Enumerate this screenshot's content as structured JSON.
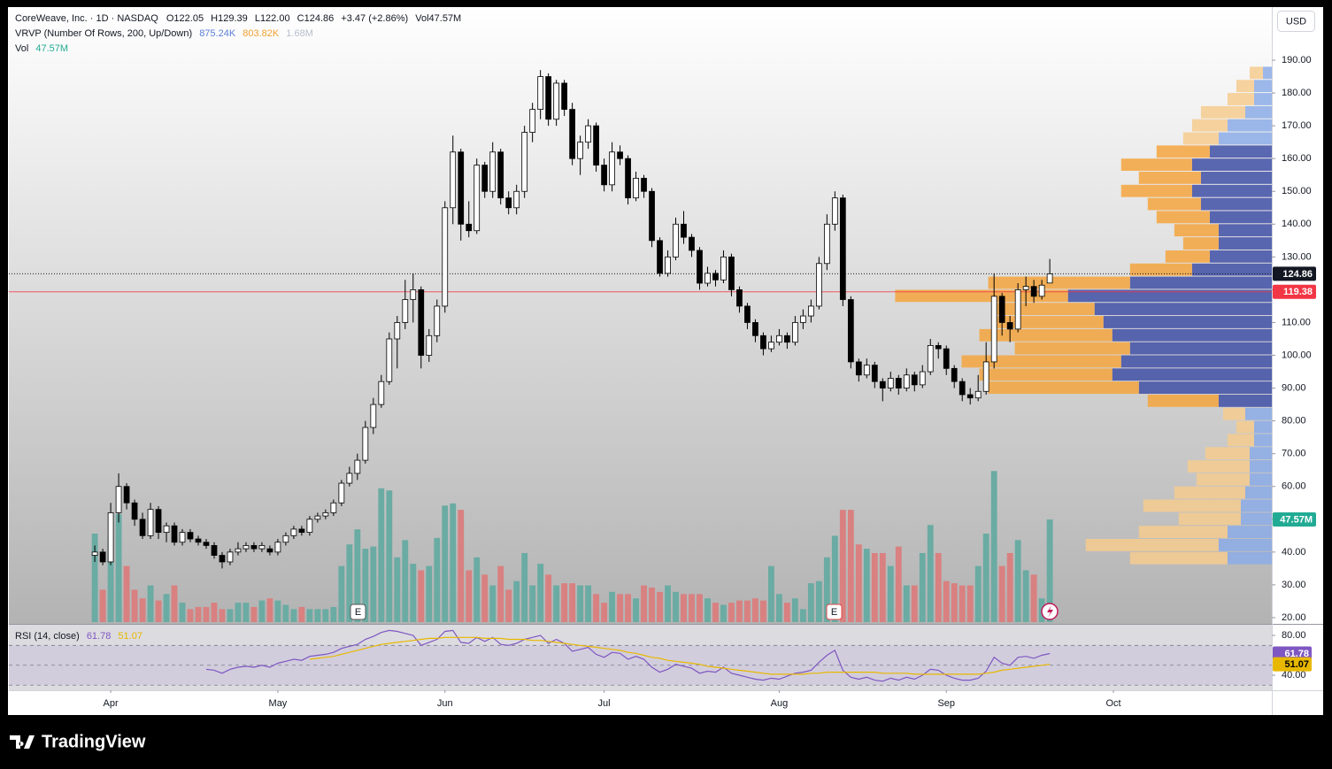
{
  "header": {
    "title": "CoreWeave, Inc. · 1D · NASDAQ",
    "ohlc": [
      {
        "key": "O",
        "value": "122.05"
      },
      {
        "key": "H",
        "value": "129.39"
      },
      {
        "key": "L",
        "value": "122.00"
      },
      {
        "key": "C",
        "value": "124.86"
      }
    ],
    "change": "+3.47 (+2.86%)",
    "vol_key": "Vol",
    "vol_value": "47.57M"
  },
  "vrvp": {
    "title": "VRVP (Number Of Rows, 200, Up/Down)",
    "up": "875.24K",
    "down": "803.82K",
    "total": "1.68M"
  },
  "vol_legend": {
    "title": "Vol",
    "value": "47.57M"
  },
  "currency": "USD",
  "brand": "TradingView",
  "events": [
    "E",
    "E"
  ],
  "chart_data": {
    "type": "candlestick",
    "xlim": [
      -10.8,
      147.9
    ],
    "xticks": [
      {
        "value": 2,
        "label": "Apr"
      },
      {
        "value": 23,
        "label": "May"
      },
      {
        "value": 44,
        "label": "Jun"
      },
      {
        "value": 64,
        "label": "Jul"
      },
      {
        "value": 86,
        "label": "Aug"
      },
      {
        "value": 107,
        "label": "Sep"
      },
      {
        "value": 128,
        "label": "Oct"
      }
    ],
    "ylim": [
      18.1,
      206.2
    ],
    "yticks": [
      {
        "value": 20,
        "label": "20.00"
      },
      {
        "value": 30,
        "label": "30.00"
      },
      {
        "value": 40,
        "label": "40.00"
      },
      {
        "value": 50,
        "label": "50.00"
      },
      {
        "value": 60,
        "label": "60.00"
      },
      {
        "value": 70,
        "label": "70.00"
      },
      {
        "value": 80,
        "label": "80.00"
      },
      {
        "value": 90,
        "label": "90.00"
      },
      {
        "value": 100,
        "label": "100.00"
      },
      {
        "value": 110,
        "label": "110.00"
      },
      {
        "value": 120,
        "label": "120.00"
      },
      {
        "value": 130,
        "label": "130.00"
      },
      {
        "value": 140,
        "label": "140.00"
      },
      {
        "value": 150,
        "label": "150.00"
      },
      {
        "value": 160,
        "label": "160.00"
      },
      {
        "value": 170,
        "label": "170.00"
      },
      {
        "value": 180,
        "label": "180.00"
      },
      {
        "value": 190,
        "label": "190.00"
      }
    ],
    "up_color": "#ffffff",
    "down_color": "#000000",
    "wick_color": "#000000",
    "open": [
      39,
      40,
      37,
      52,
      60,
      55,
      50,
      45,
      53,
      46,
      48,
      43,
      46,
      44,
      43,
      42,
      39,
      37,
      40,
      41,
      42,
      41,
      41,
      40,
      43,
      45,
      47,
      46,
      50,
      51,
      52,
      55,
      61,
      64,
      68,
      78,
      85,
      92,
      105,
      110,
      117,
      120,
      100,
      106,
      115,
      145,
      162,
      140,
      138,
      158,
      150,
      162,
      148,
      145,
      150,
      168,
      175,
      185,
      172,
      183,
      175,
      160,
      165,
      170,
      158,
      152,
      162,
      160,
      148,
      154,
      150,
      135,
      125,
      130,
      140,
      136,
      132,
      122,
      125,
      123,
      130,
      120,
      115,
      110,
      106,
      102,
      104,
      106,
      104,
      110,
      112,
      115,
      128,
      140,
      148,
      117,
      98,
      94,
      97,
      92,
      90,
      93,
      90,
      94,
      91,
      95,
      103,
      102,
      96,
      92,
      88,
      87,
      89,
      98,
      118,
      110,
      108,
      120,
      121,
      118,
      122.05
    ],
    "high": [
      42,
      41,
      55,
      64,
      61,
      56,
      52,
      55,
      54,
      49,
      49,
      47,
      47,
      45,
      44,
      43,
      40,
      41,
      43,
      43,
      43,
      43,
      42,
      44,
      46,
      48,
      48,
      51,
      52,
      53,
      56,
      62,
      66,
      70,
      80,
      87,
      94,
      107,
      112,
      123,
      125,
      121,
      108,
      117,
      147,
      167,
      163,
      147,
      160,
      159,
      165,
      163,
      150,
      152,
      170,
      177,
      187,
      186,
      184,
      184,
      177,
      167,
      172,
      171,
      160,
      165,
      164,
      161,
      156,
      155,
      151,
      136,
      132,
      142,
      144,
      137,
      133,
      127,
      126,
      132,
      131,
      121,
      116,
      111,
      107,
      106,
      108,
      107,
      112,
      114,
      117,
      130,
      143,
      150,
      149,
      118,
      99,
      99,
      98,
      93,
      95,
      94,
      96,
      95,
      97,
      105,
      104,
      103,
      97,
      93,
      90,
      94,
      104,
      125,
      119,
      112,
      122,
      124,
      123,
      123,
      129.39
    ],
    "low": [
      37,
      36,
      36,
      49,
      53,
      48,
      44,
      44,
      44,
      43,
      42,
      42,
      43,
      42,
      41,
      38,
      35,
      36,
      39,
      40,
      40,
      40,
      39,
      39,
      42,
      44,
      45,
      45,
      49,
      50,
      51,
      54,
      60,
      62,
      67,
      76,
      84,
      91,
      96,
      108,
      110,
      96,
      98,
      104,
      113,
      140,
      135,
      136,
      137,
      148,
      148,
      146,
      143,
      143,
      148,
      165,
      172,
      170,
      170,
      173,
      158,
      155,
      163,
      156,
      150,
      150,
      158,
      146,
      147,
      148,
      133,
      124,
      124,
      129,
      134,
      130,
      120,
      121,
      121,
      122,
      118,
      113,
      108,
      104,
      100,
      101,
      103,
      102,
      103,
      108,
      110,
      114,
      126,
      138,
      115,
      96,
      92,
      93,
      90,
      86,
      89,
      88,
      89,
      89,
      90,
      94,
      99,
      94,
      90,
      86,
      85,
      86,
      88,
      96,
      106,
      104,
      107,
      115,
      116,
      117,
      122
    ],
    "close": [
      40,
      37,
      52,
      60,
      55,
      50,
      45,
      53,
      46,
      48,
      43,
      46,
      44,
      43,
      42,
      39,
      37,
      40,
      41,
      42,
      41,
      42,
      40,
      43,
      45,
      47,
      46,
      50,
      51,
      52,
      55,
      61,
      64,
      68,
      78,
      85,
      92,
      105,
      110,
      117,
      120,
      100,
      106,
      115,
      145,
      162,
      140,
      138,
      158,
      150,
      162,
      148,
      145,
      150,
      168,
      175,
      185,
      172,
      183,
      175,
      160,
      165,
      170,
      158,
      152,
      162,
      160,
      148,
      154,
      150,
      135,
      125,
      130,
      140,
      136,
      132,
      122,
      125,
      123,
      130,
      120,
      115,
      110,
      106,
      102,
      104,
      106,
      104,
      110,
      112,
      115,
      128,
      140,
      148,
      117,
      98,
      94,
      97,
      92,
      90,
      93,
      90,
      94,
      91,
      95,
      103,
      102,
      96,
      92,
      88,
      87,
      89,
      98,
      118,
      110,
      108,
      120,
      121,
      118,
      121.39,
      124.86
    ],
    "last_price_color": "#131722",
    "poc": 119.38,
    "poc_color": "#f23645",
    "volume": [
      41,
      15,
      39,
      50,
      26,
      15,
      11,
      17,
      10,
      13,
      17,
      9,
      6,
      7,
      7,
      9,
      6,
      6,
      9,
      9,
      7,
      10,
      11,
      10,
      8,
      6,
      7,
      6,
      6,
      6,
      7,
      26,
      36,
      43,
      34,
      35,
      62,
      61,
      30,
      38,
      27,
      24,
      26,
      39,
      54,
      55,
      52,
      24,
      30,
      22,
      17,
      26,
      15,
      19,
      32,
      17,
      27,
      22,
      17,
      18,
      18,
      17,
      17,
      13,
      9,
      14,
      13,
      13,
      11,
      17,
      16,
      14,
      17,
      14,
      13,
      13,
      13,
      11,
      9,
      8,
      9,
      10,
      10,
      11,
      10,
      26,
      13,
      9,
      11,
      6,
      18,
      19,
      30,
      40,
      52,
      52,
      36,
      34,
      32,
      32,
      26,
      35,
      17,
      17,
      32,
      45,
      32,
      19,
      18,
      17,
      17,
      26,
      41,
      70,
      26,
      32,
      38,
      24,
      22,
      11,
      47.57
    ],
    "volume_last_label": "47.57M",
    "volume_ylim": [
      0,
      285
    ],
    "volume_up_color": "#6aaba3",
    "volume_down_color": "#d98080",
    "volume_tag_color": "#22ab94",
    "profile": {
      "bins": [
        36,
        40,
        44,
        48,
        52,
        56,
        60,
        64,
        68,
        72,
        76,
        80,
        84,
        88,
        92,
        96,
        100,
        104,
        108,
        112,
        116,
        120,
        124,
        128,
        132,
        136,
        140,
        144,
        148,
        152,
        156,
        160,
        164,
        168,
        172,
        176,
        180,
        184,
        188
      ],
      "up": [
        200,
        240,
        200,
        140,
        140,
        120,
        100,
        100,
        100,
        80,
        80,
        120,
        240,
        600,
        720,
        680,
        640,
        720,
        760,
        800,
        920,
        640,
        360,
        280,
        240,
        240,
        280,
        320,
        360,
        320,
        360,
        280,
        240,
        200,
        120,
        80,
        80,
        40
      ],
      "down": [
        440,
        600,
        400,
        280,
        440,
        320,
        240,
        280,
        200,
        120,
        80,
        100,
        320,
        680,
        600,
        720,
        520,
        600,
        480,
        440,
        780,
        640,
        280,
        200,
        160,
        200,
        240,
        240,
        320,
        280,
        320,
        240,
        160,
        160,
        200,
        120,
        80,
        60
      ],
      "xlim": [
        0,
        5700
      ],
      "value_area": [
        84,
        164
      ],
      "up_color": "#3f4fa6",
      "down_color": "#f4a53d",
      "up_color_outside": "#8cabe6",
      "down_color_outside": "#f6cb8e"
    },
    "rsi": {
      "title": "RSI (14, close)",
      "ylim": [
        24.9,
        91.6
      ],
      "yticks": [
        {
          "value": 80,
          "label": "80.00"
        },
        {
          "value": 40,
          "label": "40.00"
        }
      ],
      "bands": [
        70,
        50,
        30
      ],
      "series": [
        {
          "name": "61.78",
          "color": "#7e57c2",
          "values": [
            null,
            null,
            null,
            null,
            null,
            null,
            null,
            null,
            null,
            null,
            null,
            null,
            null,
            null,
            46,
            45,
            42,
            46,
            48,
            49,
            48,
            50,
            48,
            52,
            54,
            56,
            55,
            59,
            60,
            61,
            63,
            67,
            69,
            71,
            76,
            79,
            83,
            85,
            84,
            82,
            80,
            70,
            73,
            76,
            84,
            85,
            73,
            72,
            78,
            74,
            78,
            71,
            70,
            72,
            76,
            78,
            80,
            72,
            76,
            72,
            64,
            66,
            68,
            61,
            58,
            63,
            62,
            56,
            59,
            56,
            48,
            43,
            46,
            51,
            49,
            47,
            42,
            44,
            43,
            48,
            42,
            40,
            38,
            36,
            35,
            37,
            36,
            39,
            42,
            43,
            45,
            53,
            60,
            65,
            45,
            38,
            36,
            38,
            35,
            34,
            37,
            35,
            38,
            36,
            40,
            46,
            45,
            40,
            37,
            35,
            35,
            37,
            44,
            58,
            52,
            50,
            58,
            59,
            57,
            60,
            61.78
          ]
        },
        {
          "name": "51.07",
          "color": "#e8b800",
          "values": [
            null,
            null,
            null,
            null,
            null,
            null,
            null,
            null,
            null,
            null,
            null,
            null,
            null,
            null,
            null,
            null,
            null,
            null,
            null,
            null,
            null,
            null,
            null,
            null,
            null,
            null,
            null,
            56,
            57,
            58,
            59,
            61,
            63,
            65,
            67,
            69,
            71,
            72,
            73,
            74,
            75,
            76,
            77,
            77,
            78,
            78,
            78,
            78,
            78,
            77,
            77,
            77,
            76,
            76,
            76,
            75,
            75,
            74,
            73,
            72,
            71,
            70,
            69,
            68,
            67,
            66,
            65,
            63,
            62,
            60,
            58,
            57,
            55,
            54,
            53,
            52,
            51,
            49,
            48,
            47,
            46,
            45,
            44,
            43,
            42,
            41,
            41,
            41,
            41,
            41,
            42,
            42,
            43,
            43,
            43,
            43,
            43,
            43,
            43,
            42,
            42,
            42,
            42,
            41,
            41,
            41,
            41,
            41,
            41,
            41,
            41,
            41,
            42,
            43,
            45,
            46,
            47,
            48,
            49,
            50,
            51.07
          ]
        }
      ]
    }
  }
}
